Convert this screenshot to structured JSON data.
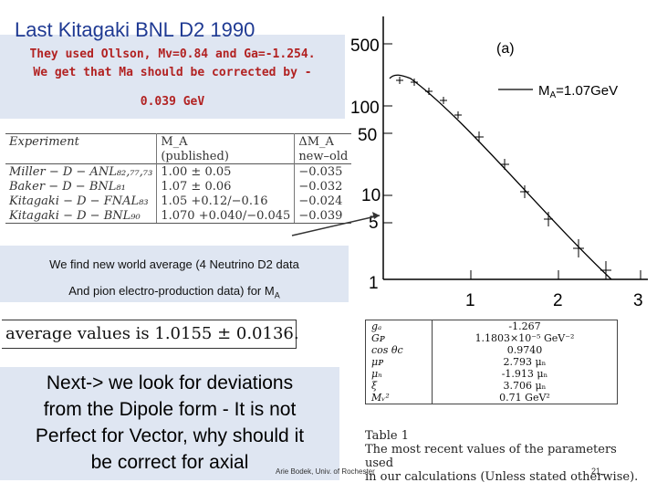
{
  "title": "Last Kitagaki BNL D2 1990",
  "note_lines": [
    "They used Ollson, Mv=0.84 and Ga=-1.254.",
    "We get  that Ma should be corrected by -",
    "0.039 GeV"
  ],
  "experiment_table": {
    "headers": [
      "Experiment",
      "M_A",
      "ΔM_A"
    ],
    "subheaders": [
      "",
      "(published)",
      "new–old"
    ],
    "rows": [
      {
        "experiment": "Miller − D − ANL₈₂,₇₇,₇₃",
        "ma": "1.00 ± 0.05",
        "dma": "−0.035"
      },
      {
        "experiment": "Baker − D − BNL₈₁",
        "ma": "1.07 ± 0.06",
        "dma": "−0.032"
      },
      {
        "experiment": "Kitagaki − D − FNAL₈₃",
        "ma": "1.05 +0.12/−0.16",
        "dma": "−0.024"
      },
      {
        "experiment": "Kitagaki − D − BNL₉₀",
        "ma": "1.070 +0.040/−0.045",
        "dma": "−0.039"
      }
    ]
  },
  "average_note": {
    "line1": "We find new world average (4 Neutrino D2 data",
    "line2": "And pion electro-production data)  for M",
    "line2_sub": "A"
  },
  "average_values": "average values is 1.0155 ± 0.0136.",
  "next_text": [
    "Next-> we look for deviations",
    "from the Dipole form - It is not",
    "Perfect for Vector, why should it",
    "be correct for axial"
  ],
  "plot": {
    "panel_label": "(a)",
    "legend": "M",
    "legend_sub": "A",
    "legend_value": "=1.07GeV",
    "y_ticks": [
      "500",
      "100",
      "50",
      "10",
      "5",
      "1"
    ],
    "x_ticks": [
      "1",
      "2",
      "3"
    ]
  },
  "params_table": [
    {
      "k": "gₐ",
      "v": "-1.267"
    },
    {
      "k": "Gᴘ",
      "v": "1.1803×10⁻⁵ GeV⁻²"
    },
    {
      "k": "cos θc",
      "v": "0.9740"
    },
    {
      "k": "μᴘ",
      "v": "2.793 μₙ"
    },
    {
      "k": "μₙ",
      "v": "-1.913 μₙ"
    },
    {
      "k": "ξ",
      "v": "3.706 μₙ"
    },
    {
      "k": "Mᵥ²",
      "v": "0.71 GeV²"
    }
  ],
  "table_caption": {
    "line1": "Table 1",
    "line2": "The most recent values of the parameters used",
    "line3": "in our calculations (Unless stated otherwise)."
  },
  "footer": "Arie Bodek, Univ. of Rochester",
  "page_number": "21"
}
